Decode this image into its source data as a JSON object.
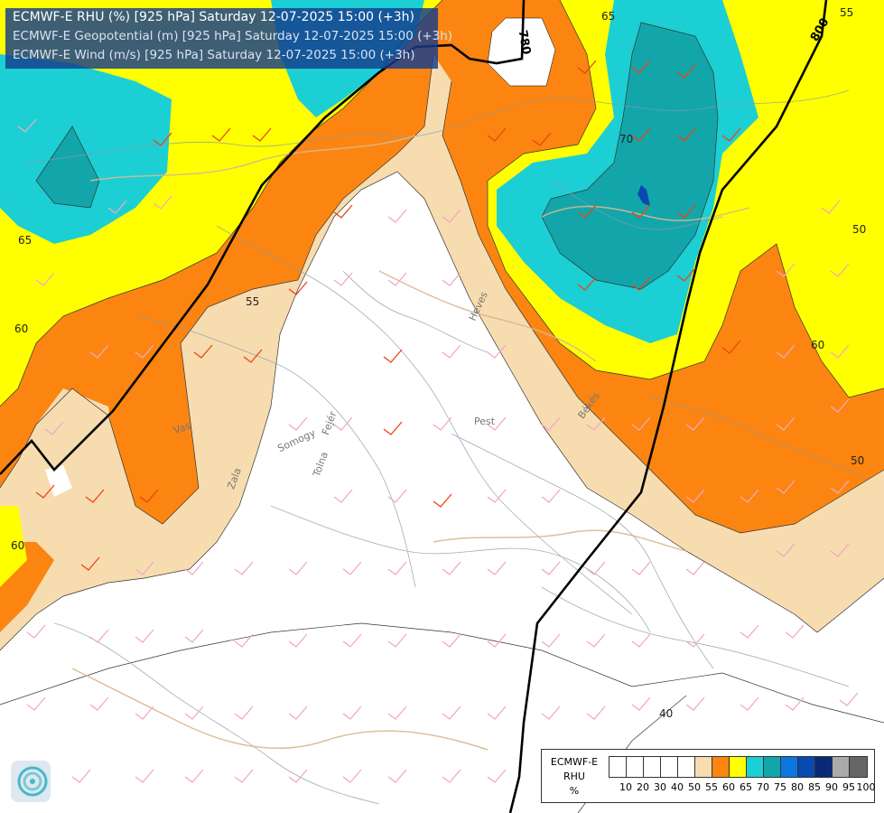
{
  "header": {
    "line1": "ECMWF-E RHU (%) [925 hPa] Saturday 12-07-2025 15:00 (+3h)",
    "line2": "ECMWF-E Geopotential (m) [925 hPa] Saturday 12-07-2025 15:00 (+3h)",
    "line3": "ECMWF-E Wind (m/s) [925 hPa] Saturday 12-07-2025 15:00 (+3h)"
  },
  "geopotential_labels": {
    "c780": "780",
    "c800": "800"
  },
  "rhu_contour_labels": {
    "nw65": "65",
    "n65": "65",
    "ne55": "55",
    "c70": "70",
    "e50top": "50",
    "w60": "60",
    "e60": "60",
    "e50": "50",
    "sw60": "60",
    "s40": "40",
    "c55": "55"
  },
  "place_labels": {
    "pest": "Pest",
    "bekes": "Békés",
    "vas": "Vas",
    "zala": "Zala",
    "somogy": "Somogy",
    "fejer": "Fejér",
    "tolna": "Tolna",
    "heves": "Heves"
  },
  "legend": {
    "title_line1": "ECMWF-E",
    "title_line2": "RHU",
    "title_line3": "%",
    "colors": [
      "#ffffff",
      "#ffffff",
      "#ffffff",
      "#ffffff",
      "#ffffff",
      "#f7dcb0",
      "#fb8510",
      "#ffff00",
      "#1ccfd4",
      "#12a6aa",
      "#0a78e0",
      "#0a4ab0",
      "#0a2a78",
      "#aaaaaa",
      "#666666"
    ],
    "ticks": [
      "10",
      "20",
      "30",
      "40",
      "50",
      "55",
      "60",
      "65",
      "70",
      "75",
      "80",
      "85",
      "90",
      "95",
      "100"
    ]
  },
  "logo": {
    "icon": "ecmwf-logo-icon"
  }
}
